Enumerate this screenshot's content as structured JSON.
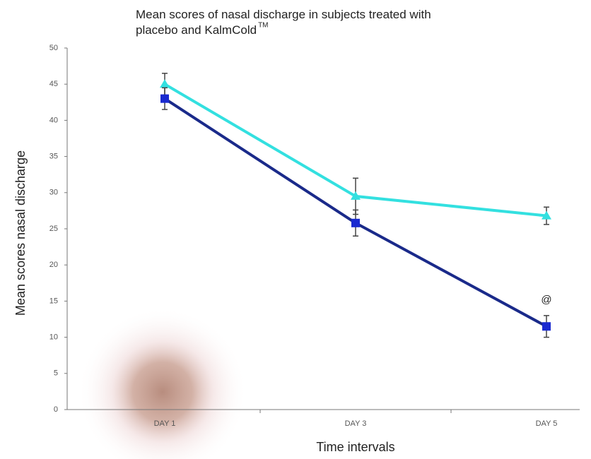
{
  "chart_data": {
    "type": "line",
    "title": "Mean scores of nasal discharge in subjects treated with placebo and KalmCold",
    "title_mark": "TM",
    "x_label": "Time intervals",
    "y_label": "Mean scores nasal discharge",
    "categories": [
      "DAY 1",
      "DAY 3",
      "DAY 5"
    ],
    "series": [
      {
        "color": "#33e0e0",
        "marker": "triangle",
        "values": [
          45,
          29.5,
          26.8
        ],
        "errors": [
          1.5,
          2.5,
          1.2
        ]
      },
      {
        "color": "#1a2a8a",
        "marker": "square",
        "values": [
          43,
          25.8,
          11.5
        ],
        "errors": [
          1.5,
          1.8,
          1.5
        ]
      }
    ],
    "annotation": "@",
    "ylim": [
      0,
      50
    ],
    "yticks": [
      0,
      5,
      10,
      15,
      20,
      25,
      30,
      35,
      40,
      45,
      50
    ],
    "grid": false
  }
}
